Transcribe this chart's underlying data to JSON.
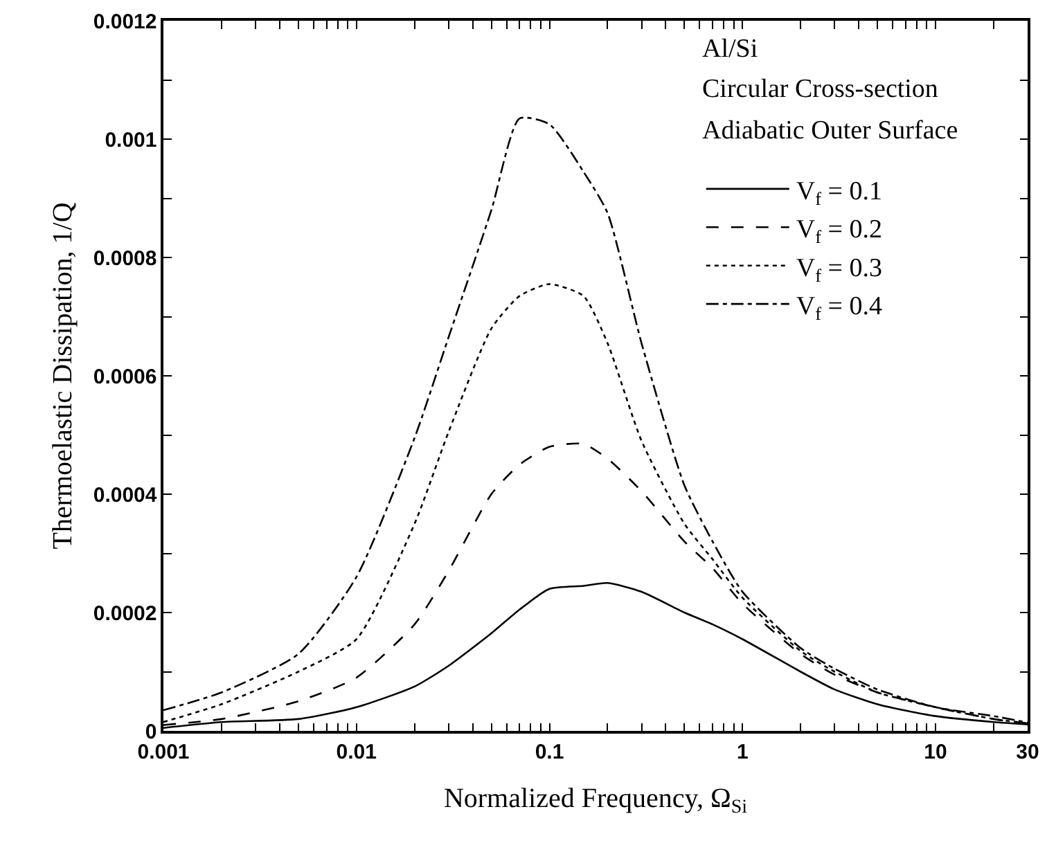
{
  "chart_data": {
    "type": "line",
    "xlabel": "Normalized Frequency, Ω$_{Si}$",
    "ylabel": "Thermoelastic Dissipation, 1/Q",
    "annotations": [
      "Al/Si",
      "Circular Cross-section",
      "Adiabatic Outer Surface"
    ],
    "x": [
      0.001,
      0.002,
      0.005,
      0.01,
      0.02,
      0.03,
      0.05,
      0.07,
      0.1,
      0.15,
      0.2,
      0.3,
      0.5,
      0.7,
      1,
      2,
      3,
      5,
      10,
      20,
      30
    ],
    "series": [
      {
        "name": "V$_{f}$ = 0.1",
        "color": "#000000",
        "line_style": "solid",
        "values": [
          5e-06,
          1.5e-05,
          2e-05,
          4e-05,
          7.5e-05,
          0.00011,
          0.000165,
          0.000205,
          0.00024,
          0.000245,
          0.00025,
          0.000235,
          0.0002,
          0.00018,
          0.000155,
          0.0001,
          7e-05,
          4.5e-05,
          2.5e-05,
          1.5e-05,
          1.1e-05
        ]
      },
      {
        "name": "V$_{f}$ = 0.2",
        "color": "#000000",
        "line_style": "dashed",
        "values": [
          1e-05,
          2e-05,
          5e-05,
          9e-05,
          0.00018,
          0.00027,
          0.0004,
          0.00045,
          0.00048,
          0.000485,
          0.00046,
          0.000405,
          0.00032,
          0.000275,
          0.000215,
          0.00013,
          9.5e-05,
          6.5e-05,
          4e-05,
          2e-05,
          1.2e-05
        ]
      },
      {
        "name": "V$_{f}$ = 0.3",
        "color": "#000000",
        "line_style": "dotted",
        "values": [
          1.5e-05,
          4.5e-05,
          0.0001,
          0.000155,
          0.00035,
          0.000505,
          0.00068,
          0.000735,
          0.000755,
          0.000735,
          0.000655,
          0.00049,
          0.00035,
          0.00029,
          0.000225,
          0.000135,
          0.0001,
          6.5e-05,
          4e-05,
          2e-05,
          1.3e-05
        ]
      },
      {
        "name": "V$_{f}$ = 0.4",
        "color": "#000000",
        "line_style": "dashdot",
        "values": [
          3.5e-05,
          6.5e-05,
          0.00013,
          0.00026,
          0.000495,
          0.000665,
          0.00088,
          0.001035,
          0.001025,
          0.000945,
          0.000875,
          0.000655,
          0.000415,
          0.00032,
          0.000235,
          0.00014,
          0.000105,
          7e-05,
          4e-05,
          2.5e-05,
          1.4e-05
        ]
      }
    ],
    "log": "x",
    "xlim": [
      0.001,
      30
    ],
    "xticks": [
      0.001,
      {
        "value": 0.002,
        "label": null
      },
      {
        "value": 0.003,
        "label": null
      },
      {
        "value": 0.004,
        "label": null
      },
      {
        "value": 0.005,
        "label": null
      },
      {
        "value": 0.006,
        "label": null
      },
      {
        "value": 0.007,
        "label": null
      },
      {
        "value": 0.008,
        "label": null
      },
      {
        "value": 0.009,
        "label": null
      },
      0.01,
      {
        "value": 0.02,
        "label": null
      },
      {
        "value": 0.03,
        "label": null
      },
      {
        "value": 0.04,
        "label": null
      },
      {
        "value": 0.05,
        "label": null
      },
      {
        "value": 0.06,
        "label": null
      },
      {
        "value": 0.07,
        "label": null
      },
      {
        "value": 0.08,
        "label": null
      },
      {
        "value": 0.09,
        "label": null
      },
      0.1,
      {
        "value": 0.2,
        "label": null
      },
      {
        "value": 0.3,
        "label": null
      },
      {
        "value": 0.4,
        "label": null
      },
      {
        "value": 0.5,
        "label": null
      },
      {
        "value": 0.6,
        "label": null
      },
      {
        "value": 0.7,
        "label": null
      },
      {
        "value": 0.8,
        "label": null
      },
      {
        "value": 0.9,
        "label": null
      },
      1,
      {
        "value": 2,
        "label": null
      },
      {
        "value": 3,
        "label": null
      },
      {
        "value": 4,
        "label": null
      },
      {
        "value": 5,
        "label": null
      },
      {
        "value": 6,
        "label": null
      },
      {
        "value": 7,
        "label": null
      },
      {
        "value": 8,
        "label": null
      },
      {
        "value": 9,
        "label": null
      },
      10,
      {
        "value": 20,
        "label": null
      },
      30
    ],
    "ylim": [
      0,
      0.0012
    ],
    "yticks": [
      0,
      {
        "value": 0.0001,
        "label": null
      },
      0.0002,
      {
        "value": 0.0003,
        "label": null
      },
      0.0004,
      {
        "value": 0.0005,
        "label": null
      },
      0.0006,
      {
        "value": 0.0007,
        "label": null
      },
      0.0008,
      {
        "value": 0.0009,
        "label": null
      },
      0.001,
      {
        "value": 0.0011,
        "label": null
      },
      0.0012
    ],
    "grid": false,
    "legend": "top right"
  }
}
